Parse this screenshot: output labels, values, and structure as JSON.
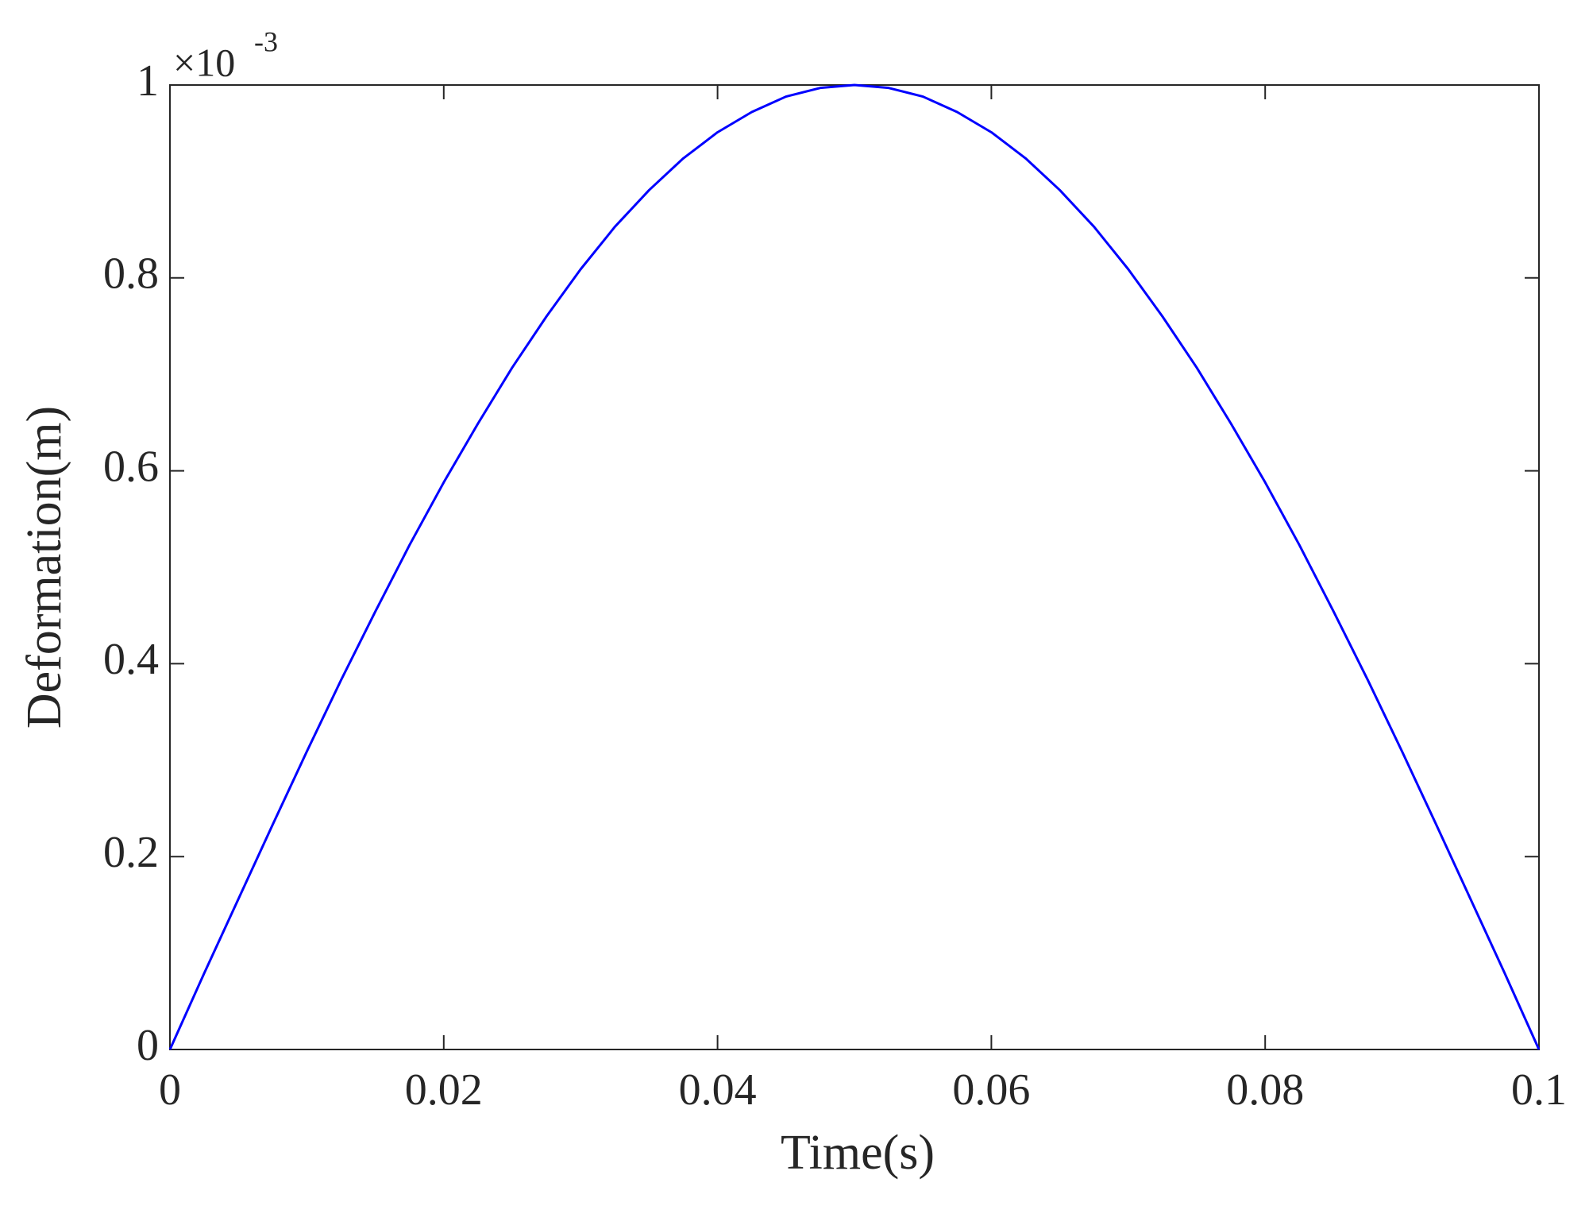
{
  "chart_data": {
    "type": "line",
    "xlabel": "Time(s)",
    "ylabel": "Deformation(m)",
    "y_multiplier": "×10",
    "y_multiplier_exponent": "-3",
    "color": "#0000ff",
    "x": [
      0,
      0.0025,
      0.005,
      0.0075,
      0.01,
      0.0125,
      0.015,
      0.0175,
      0.02,
      0.0225,
      0.025,
      0.0275,
      0.03,
      0.0325,
      0.035,
      0.0375,
      0.04,
      0.0425,
      0.045,
      0.0475,
      0.05,
      0.0525,
      0.055,
      0.0575,
      0.06,
      0.0625,
      0.065,
      0.0675,
      0.07,
      0.0725,
      0.075,
      0.0775,
      0.08,
      0.0825,
      0.085,
      0.0875,
      0.09,
      0.0925,
      0.095,
      0.0975,
      0.1
    ],
    "values": [
      0,
      0.079,
      0.156,
      0.233,
      0.309,
      0.383,
      0.454,
      0.523,
      0.588,
      0.649,
      0.707,
      0.76,
      0.809,
      0.853,
      0.891,
      0.924,
      0.951,
      0.972,
      0.988,
      0.997,
      1,
      0.997,
      0.988,
      0.972,
      0.951,
      0.924,
      0.891,
      0.853,
      0.809,
      0.76,
      0.707,
      0.649,
      0.588,
      0.523,
      0.454,
      0.383,
      0.309,
      0.233,
      0.156,
      0.079,
      0
    ],
    "xlim": [
      0,
      0.1
    ],
    "xticks": [
      0,
      0.02,
      0.04,
      0.06,
      0.08,
      0.1
    ],
    "ylim": [
      0,
      1
    ],
    "yticks": [
      0,
      0.2,
      0.4,
      0.6,
      0.8,
      1
    ]
  }
}
